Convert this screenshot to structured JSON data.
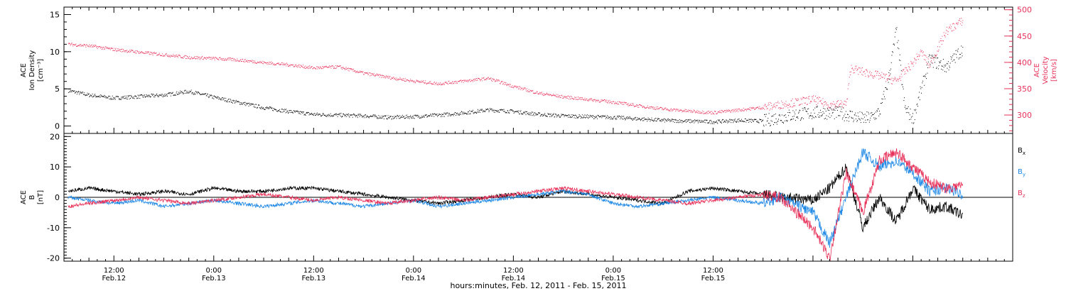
{
  "colors": {
    "black": "#000000",
    "red": "#e8325a",
    "blue": "#1e88e5"
  },
  "chart_data": [
    {
      "type": "scatter",
      "panel": "top",
      "ylabel_left": [
        "ACE",
        "Ion Density",
        "[cm⁻³]"
      ],
      "ylabel_right": [
        "ACE",
        "Velocity",
        "[km/s]"
      ],
      "ylim": [
        -1,
        16
      ],
      "yticks": [
        0,
        5,
        10,
        15
      ],
      "ylim_right": [
        265,
        505
      ],
      "yticks_right": [
        300,
        350,
        400,
        450,
        500
      ],
      "series": [
        {
          "axis": "left",
          "color": "#000000",
          "x": [
            -5.5,
            -3,
            0,
            3,
            6,
            9,
            12,
            15,
            18,
            21,
            24,
            27,
            30,
            33,
            36,
            39,
            42,
            45,
            48,
            51,
            54,
            57,
            60,
            63,
            66,
            69,
            72,
            75,
            78,
            78.5,
            79,
            80,
            81,
            82,
            83,
            84,
            85,
            86,
            87,
            88,
            89,
            90,
            91,
            92,
            93,
            94,
            95,
            96,
            97,
            98,
            100,
            102
          ],
          "y": [
            4.8,
            4.2,
            3.8,
            4,
            4.2,
            4.7,
            3.9,
            3.2,
            2.5,
            2,
            1.6,
            1.5,
            1.4,
            1.2,
            1.3,
            1.5,
            1.8,
            2.2,
            2,
            1.6,
            1.4,
            1.3,
            1.2,
            1,
            0.8,
            0.7,
            0.6,
            0.8,
            0.7,
            0.8,
            1,
            1.2,
            1.4,
            1.6,
            1.7,
            1.8,
            1.9,
            1.8,
            1.8,
            1.6,
            1.3,
            1,
            1.2,
            2,
            6,
            13,
            2.5,
            1,
            5,
            9,
            8,
            10.5
          ]
        },
        {
          "axis": "right",
          "color": "#e8325a",
          "x": [
            -5.5,
            -3,
            0,
            3,
            6,
            9,
            12,
            15,
            18,
            21,
            24,
            27,
            30,
            33,
            36,
            39,
            42,
            45,
            48,
            51,
            54,
            57,
            60,
            63,
            66,
            69,
            72,
            75,
            78,
            80,
            84,
            86,
            88,
            88.5,
            90,
            92,
            94,
            96,
            97,
            98,
            100,
            102
          ],
          "y": [
            435,
            432,
            425,
            420,
            415,
            410,
            408,
            405,
            400,
            396,
            390,
            392,
            380,
            372,
            365,
            360,
            365,
            370,
            355,
            342,
            335,
            330,
            325,
            318,
            312,
            308,
            305,
            310,
            315,
            320,
            330,
            320,
            322,
            390,
            382,
            375,
            365,
            400,
            420,
            395,
            460,
            480
          ]
        }
      ]
    },
    {
      "type": "line",
      "panel": "bottom",
      "ylabel_left": [
        "ACE",
        "B",
        "[nT]"
      ],
      "ylim": [
        -21,
        21
      ],
      "yticks": [
        -20,
        -10,
        0,
        10,
        20
      ],
      "series": [
        {
          "name": "Bx",
          "color": "#000000",
          "x": [
            -5.5,
            -3,
            0,
            3,
            6,
            9,
            12,
            15,
            18,
            21,
            24,
            27,
            30,
            33,
            36,
            39,
            42,
            45,
            48,
            51,
            54,
            57,
            60,
            63,
            66,
            69,
            72,
            75,
            78,
            80,
            84,
            86,
            88,
            90,
            92,
            94,
            96,
            98,
            100,
            102
          ],
          "y": [
            2,
            3,
            2,
            1,
            2,
            1,
            3,
            2,
            2,
            3,
            3,
            2,
            1,
            0,
            -1,
            -2,
            -1,
            0,
            1,
            0,
            2,
            1,
            0,
            -1,
            -2,
            2,
            3,
            2,
            1,
            0,
            -1,
            3,
            10,
            -10,
            0,
            -8,
            3,
            -4,
            -3,
            -6
          ]
        },
        {
          "name": "By",
          "color": "#1e88e5",
          "x": [
            -5.5,
            -3,
            0,
            3,
            6,
            9,
            12,
            15,
            18,
            21,
            24,
            27,
            30,
            33,
            36,
            39,
            42,
            45,
            48,
            51,
            54,
            57,
            60,
            63,
            66,
            69,
            72,
            75,
            78,
            80,
            84,
            86,
            88,
            90,
            92,
            94,
            96,
            98,
            100,
            102
          ],
          "y": [
            0,
            -1,
            -2,
            -1,
            -3,
            -2,
            -1,
            -2,
            -3,
            -2,
            -1,
            -2,
            -3,
            -2,
            -1,
            -3,
            -2,
            -1,
            0,
            1,
            2,
            1,
            -2,
            -3,
            -2,
            -1,
            0,
            -1,
            -2,
            0,
            -5,
            -15,
            0,
            15,
            10,
            12,
            8,
            2,
            3,
            1
          ]
        },
        {
          "name": "Bz",
          "color": "#e8325a",
          "x": [
            -5.5,
            -3,
            0,
            3,
            6,
            9,
            12,
            15,
            18,
            21,
            24,
            27,
            30,
            33,
            36,
            39,
            42,
            45,
            48,
            51,
            54,
            57,
            60,
            63,
            66,
            69,
            72,
            75,
            78,
            80,
            84,
            86,
            88,
            90,
            92,
            94,
            96,
            98,
            100,
            102
          ],
          "y": [
            -3,
            -2,
            -1,
            0,
            -1,
            -2,
            -1,
            0,
            1,
            0,
            -1,
            0,
            -1,
            -2,
            -1,
            0,
            -1,
            0,
            1,
            2,
            3,
            2,
            1,
            0,
            -1,
            -2,
            -1,
            0,
            1,
            0,
            -10,
            -20,
            8,
            -5,
            12,
            15,
            10,
            5,
            3,
            4
          ]
        }
      ]
    }
  ],
  "x_axis": {
    "xlim": [
      -6,
      108
    ],
    "major_ticks": [
      {
        "x": 0,
        "time": "12:00",
        "date": "Feb.12"
      },
      {
        "x": 12,
        "time": "0:00",
        "date": "Feb.13"
      },
      {
        "x": 24,
        "time": "12:00",
        "date": "Feb.13"
      },
      {
        "x": 36,
        "time": "0:00",
        "date": "Feb.14"
      },
      {
        "x": 48,
        "time": "12:00",
        "date": "Feb.14"
      },
      {
        "x": 60,
        "time": "0:00",
        "date": "Feb.15"
      },
      {
        "x": 72,
        "time": "12:00",
        "date": "Feb.15"
      }
    ],
    "xlabel": "hours:minutes, Feb. 12, 2011 - Feb. 15, 2011"
  },
  "legend": [
    {
      "name": "Bx",
      "base": "B",
      "sub": "x",
      "color": "#000000"
    },
    {
      "name": "By",
      "base": "B",
      "sub": "y",
      "color": "#1e88e5"
    },
    {
      "name": "Bz",
      "base": "B",
      "sub": "z",
      "color": "#e8325a"
    }
  ]
}
